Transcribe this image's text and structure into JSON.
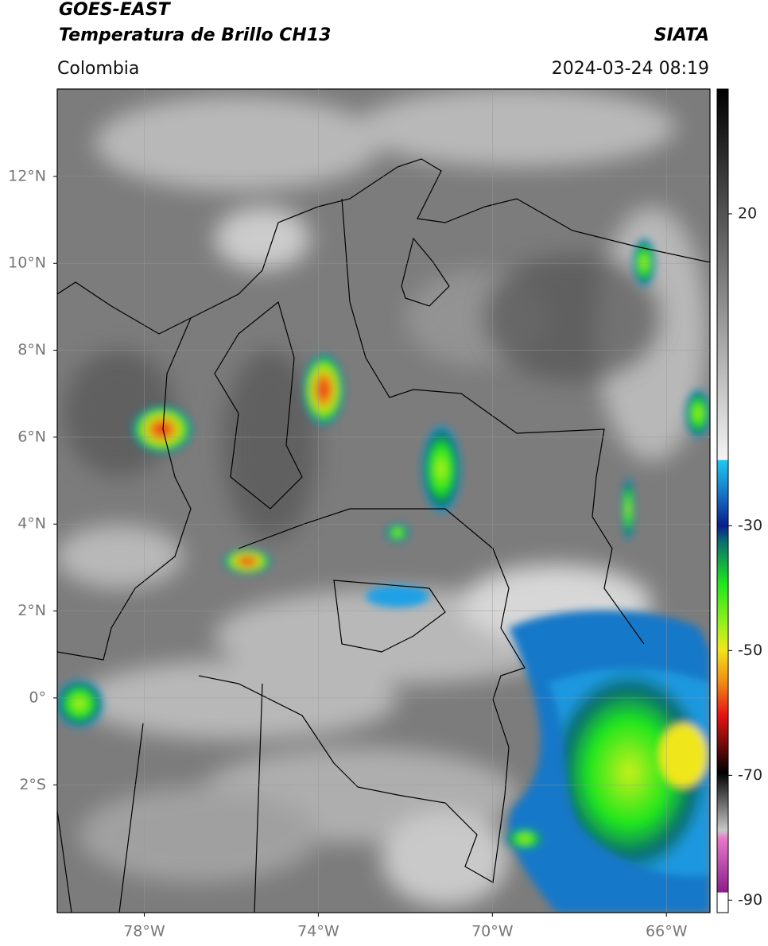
{
  "header": {
    "satellite": "GOES-EAST",
    "product": "Temperatura de Brillo CH13",
    "agency": "SIATA",
    "region": "Colombia",
    "datetime": "2024-03-24 08:19"
  },
  "map": {
    "xlim": [
      -80,
      -65
    ],
    "ylim": [
      -4.94,
      14.01
    ],
    "xticks": [
      {
        "value": -78,
        "label": "78°W"
      },
      {
        "value": -74,
        "label": "74°W"
      },
      {
        "value": -70,
        "label": "70°W"
      },
      {
        "value": -66,
        "label": "66°W"
      }
    ],
    "yticks": [
      {
        "value": 12,
        "label": "12°N"
      },
      {
        "value": 10,
        "label": "10°N"
      },
      {
        "value": 8,
        "label": "8°N"
      },
      {
        "value": 6,
        "label": "6°N"
      },
      {
        "value": 4,
        "label": "4°N"
      },
      {
        "value": 2,
        "label": "2°N"
      },
      {
        "value": 0,
        "label": "0°"
      },
      {
        "value": -2,
        "label": "2°S"
      }
    ],
    "grid": true
  },
  "colorbar": {
    "lim": [
      -92,
      40
    ],
    "ticks": [
      20,
      -30,
      -50,
      -70,
      -90
    ]
  }
}
